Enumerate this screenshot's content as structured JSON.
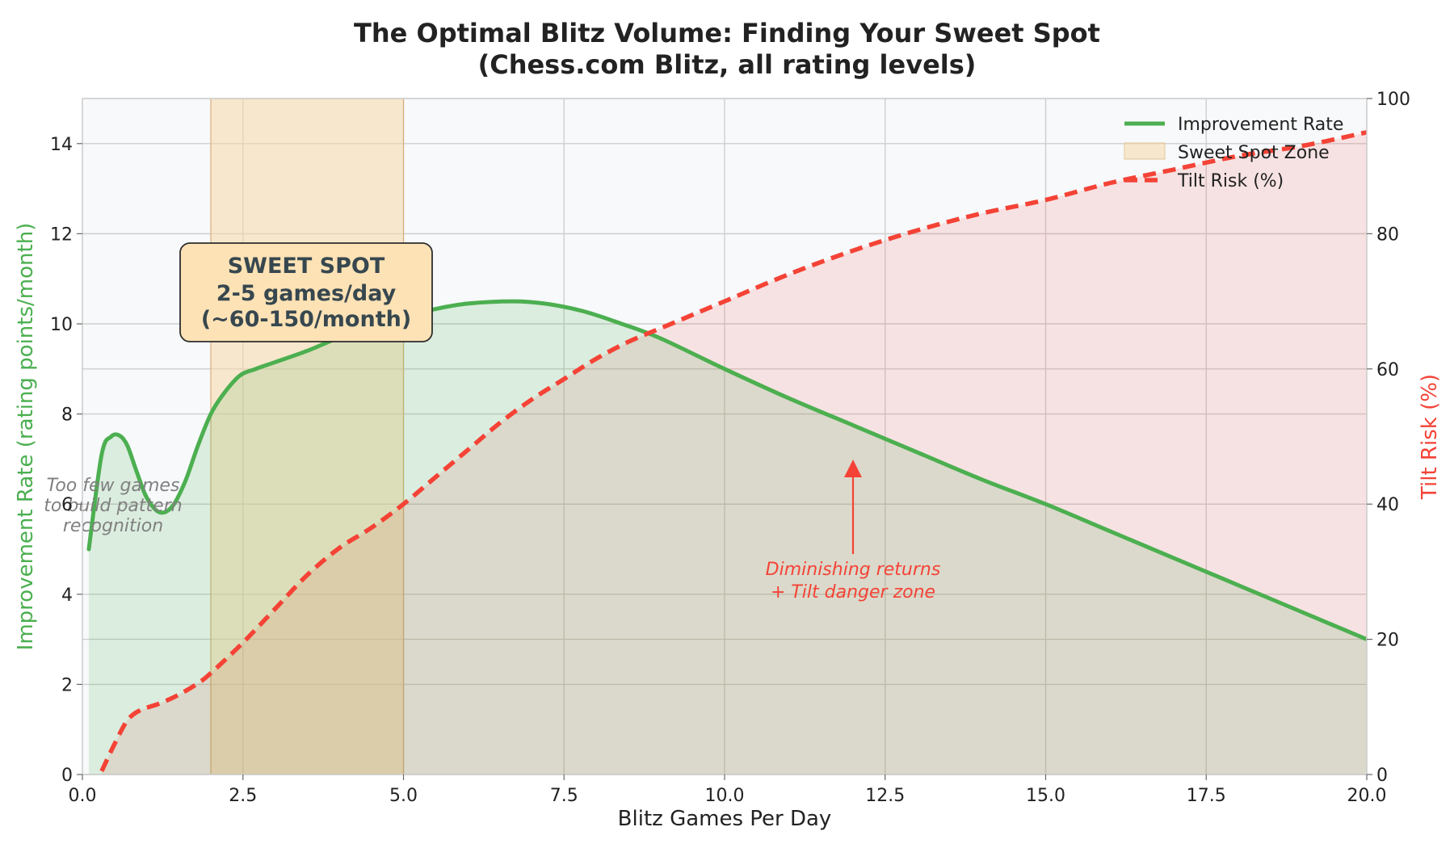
{
  "title_lines": [
    "The Optimal Blitz Volume: Finding Your Sweet Spot",
    "(Chess.com Blitz, all rating levels)"
  ],
  "axes": {
    "xlabel": "Blitz Games Per Day",
    "ylabel_left": "Improvement Rate (rating points/month)",
    "ylabel_right": "Tilt Risk (%)"
  },
  "legend": {
    "improvement": "Improvement Rate",
    "sweet_spot": "Sweet Spot Zone",
    "tilt": "Tilt Risk (%)"
  },
  "annotations": {
    "sweet_spot_box": [
      "SWEET SPOT",
      "2-5 games/day",
      "(~60-150/month)"
    ],
    "too_few": [
      "Too few games",
      "to build pattern",
      "recognition"
    ],
    "diminishing": [
      "Diminishing returns",
      "+ Tilt danger zone"
    ]
  },
  "colors": {
    "improvement": "#4caf50",
    "tilt": "#f44336",
    "sweet_spot": "#f7d9a8",
    "background": "#f7f9fb",
    "annotation_box": "#fde2b5",
    "annotation_box_edge": "#2d2d2d",
    "grid": "#cfcfcf",
    "text": "#222222",
    "sweet_spot_text": "#37474f",
    "too_few_text": "#808080"
  },
  "chart_data": {
    "type": "line",
    "xlim": [
      0,
      20
    ],
    "ylim_left": [
      0,
      15
    ],
    "ylim_right": [
      0,
      100
    ],
    "grid": true,
    "legend_position": "top-right",
    "x_ticks": [
      0.0,
      2.5,
      5.0,
      7.5,
      10.0,
      12.5,
      15.0,
      17.5,
      20.0
    ],
    "x_tick_labels": [
      "0.0",
      "2.5",
      "5.0",
      "7.5",
      "10.0",
      "12.5",
      "15.0",
      "17.5",
      "20.0"
    ],
    "y_left_ticks": [
      0,
      2,
      4,
      6,
      8,
      10,
      12,
      14
    ],
    "y_left_tick_labels": [
      "0",
      "2",
      "4",
      "6",
      "8",
      "10",
      "12",
      "14"
    ],
    "y_right_ticks": [
      0,
      20,
      40,
      60,
      80,
      100
    ],
    "y_right_tick_labels": [
      "0",
      "20",
      "40",
      "60",
      "80",
      "100"
    ],
    "sweet_spot": [
      2,
      5
    ],
    "series": [
      {
        "name": "Improvement Rate",
        "axis": "left",
        "style": "solid",
        "points": [
          [
            0.1,
            5.0
          ],
          [
            0.3,
            7.1
          ],
          [
            0.45,
            7.5
          ],
          [
            0.58,
            7.52
          ],
          [
            0.7,
            7.3
          ],
          [
            0.85,
            6.7
          ],
          [
            1.0,
            6.15
          ],
          [
            1.2,
            5.82
          ],
          [
            1.4,
            5.95
          ],
          [
            1.6,
            6.5
          ],
          [
            1.8,
            7.3
          ],
          [
            2.0,
            8.0
          ],
          [
            2.2,
            8.45
          ],
          [
            2.45,
            8.85
          ],
          [
            2.7,
            9.0
          ],
          [
            3.0,
            9.15
          ],
          [
            3.5,
            9.4
          ],
          [
            4.0,
            9.7
          ],
          [
            4.5,
            9.95
          ],
          [
            5.0,
            10.15
          ],
          [
            5.5,
            10.33
          ],
          [
            6.0,
            10.45
          ],
          [
            6.7,
            10.5
          ],
          [
            7.2,
            10.45
          ],
          [
            7.8,
            10.28
          ],
          [
            8.4,
            10.0
          ],
          [
            9.0,
            9.68
          ],
          [
            10.0,
            9.0
          ],
          [
            11.0,
            8.35
          ],
          [
            12.0,
            7.75
          ],
          [
            13.0,
            7.15
          ],
          [
            14.0,
            6.55
          ],
          [
            15.0,
            6.0
          ],
          [
            16.0,
            5.4
          ],
          [
            17.0,
            4.8
          ],
          [
            18.0,
            4.2
          ],
          [
            19.0,
            3.6
          ],
          [
            20.0,
            3.0
          ]
        ]
      },
      {
        "name": "Tilt Risk (%)",
        "axis": "right",
        "style": "dashed",
        "points": [
          [
            0.3,
            0.5
          ],
          [
            0.5,
            4.5
          ],
          [
            0.7,
            8.0
          ],
          [
            0.9,
            9.5
          ],
          [
            1.2,
            10.5
          ],
          [
            1.5,
            11.8
          ],
          [
            1.8,
            13.5
          ],
          [
            2.0,
            15.0
          ],
          [
            2.5,
            19.5
          ],
          [
            3.0,
            24.5
          ],
          [
            3.5,
            29.5
          ],
          [
            4.0,
            33.5
          ],
          [
            4.5,
            36.5
          ],
          [
            5.0,
            40.0
          ],
          [
            5.5,
            44.0
          ],
          [
            6.0,
            48.0
          ],
          [
            6.5,
            52.0
          ],
          [
            7.0,
            55.5
          ],
          [
            7.5,
            58.5
          ],
          [
            8.0,
            61.5
          ],
          [
            8.5,
            64.0
          ],
          [
            9.0,
            66.0
          ],
          [
            9.5,
            68.0
          ],
          [
            10.0,
            70.0
          ],
          [
            11.0,
            74.0
          ],
          [
            12.0,
            77.5
          ],
          [
            13.0,
            80.5
          ],
          [
            14.0,
            83.0
          ],
          [
            15.0,
            85.0
          ],
          [
            16.0,
            87.5
          ],
          [
            17.0,
            89.5
          ],
          [
            18.0,
            91.5
          ],
          [
            19.0,
            93.0
          ],
          [
            20.0,
            95.0
          ]
        ]
      }
    ]
  }
}
